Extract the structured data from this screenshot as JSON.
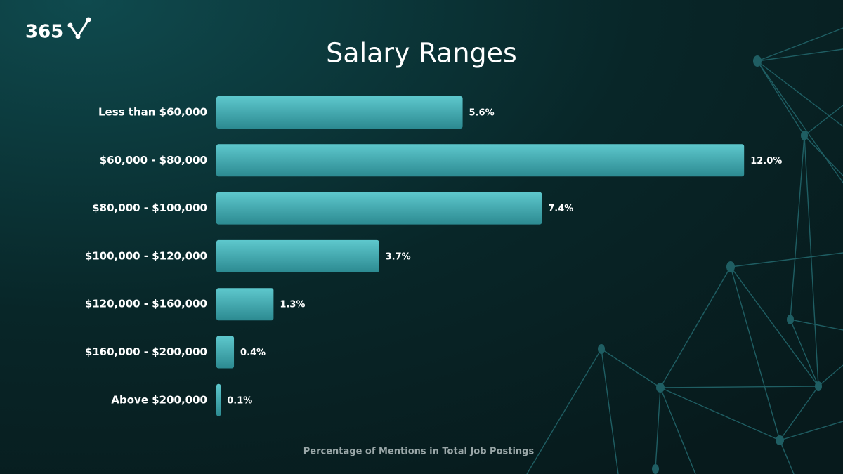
{
  "logo": "365",
  "chart_data": {
    "type": "bar",
    "orientation": "horizontal",
    "title": "Salary Ranges",
    "xlabel": "Percentage of Mentions in Total Job Postings",
    "categories": [
      "Less than $60,000",
      "$60,000 - $80,000",
      "$80,000 - $100,000",
      "$100,000 - $120,000",
      "$120,000 - $160,000",
      "$160,000 - $200,000",
      "Above $200,000"
    ],
    "values": [
      5.6,
      12.0,
      7.4,
      3.7,
      1.3,
      0.4,
      0.1
    ],
    "value_labels": [
      "5.6%",
      "12.0%",
      "7.4%",
      "3.7%",
      "1.3%",
      "0.4%",
      "0.1%"
    ],
    "color": "#4fb8be"
  }
}
